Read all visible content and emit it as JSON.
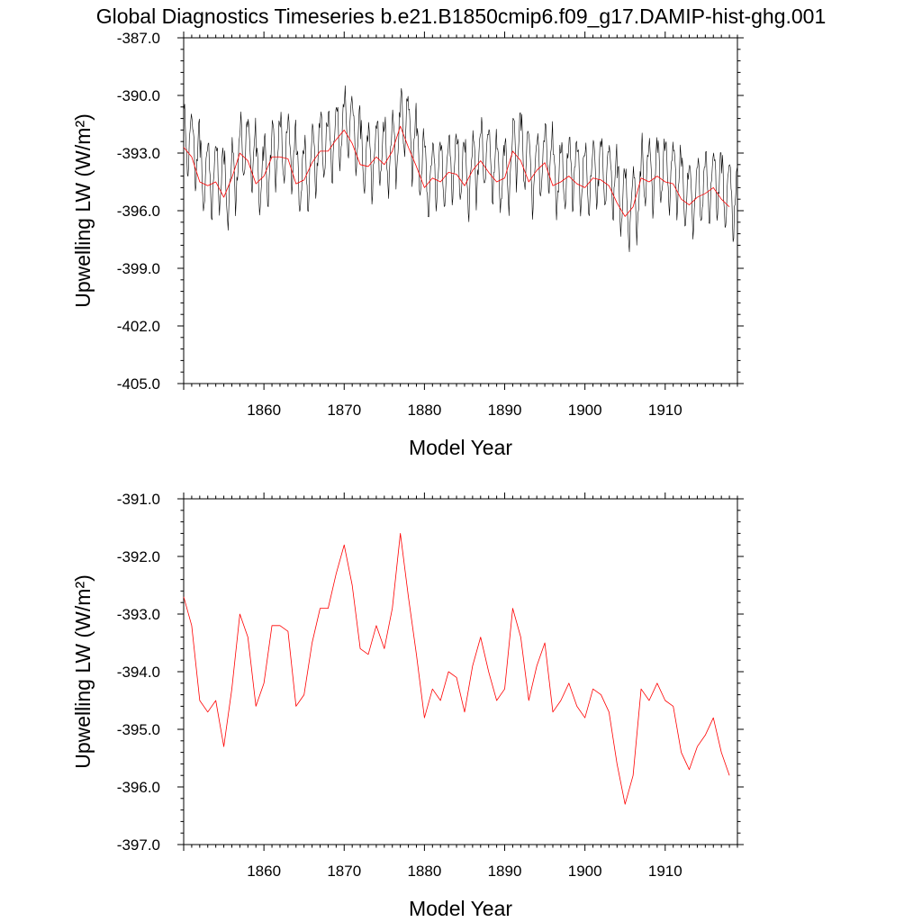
{
  "title": "Global Diagnostics Timeseries b.e21.B1850cmip6.f09_g17.DAMIP-hist-ghg.001",
  "colors": {
    "monthly": "#000000",
    "annual": "#ff0000",
    "axis": "#000000"
  },
  "chart_data": [
    {
      "type": "line",
      "ylabel": "Upwelling LW (W/m²)",
      "xlabel": "Model Year",
      "xlim": [
        1850,
        1919
      ],
      "ylim": [
        -405.0,
        -387.0
      ],
      "xticks": [
        "1860",
        "1870",
        "1880",
        "1890",
        "1900",
        "1910"
      ],
      "yticks": [
        "-387.0",
        "-390.0",
        "-393.0",
        "-396.0",
        "-399.0",
        "-402.0",
        "-405.0"
      ],
      "series": [
        {
          "style": "monthly",
          "color": "#000000",
          "x_start": 1850.0417,
          "x_step": 0.083333,
          "monthly_cycle": [
            1.75,
            1.9,
            1.3,
            0.3,
            -0.7,
            -1.6,
            -1.4,
            -0.5,
            0.1,
            0.9,
            1.5,
            1.7
          ],
          "annual_means": [
            -392.7,
            -393.2,
            -394.5,
            -394.7,
            -394.5,
            -395.3,
            -394.3,
            -393.0,
            -393.4,
            -394.6,
            -394.2,
            -393.2,
            -393.2,
            -393.3,
            -394.6,
            -394.4,
            -393.5,
            -392.9,
            -392.9,
            -392.3,
            -391.8,
            -392.5,
            -393.6,
            -393.7,
            -393.2,
            -393.6,
            -392.9,
            -391.6,
            -392.7,
            -393.7,
            -394.8,
            -394.3,
            -394.5,
            -394.0,
            -394.1,
            -394.7,
            -393.9,
            -393.4,
            -394.0,
            -394.5,
            -394.3,
            -392.9,
            -393.4,
            -394.5,
            -393.9,
            -393.5,
            -394.7,
            -394.5,
            -394.2,
            -394.6,
            -394.8,
            -394.3,
            -394.4,
            -394.7,
            -395.6,
            -396.3,
            -395.8,
            -394.3,
            -394.5,
            -394.2,
            -394.5,
            -394.6,
            -395.4,
            -395.7,
            -395.3,
            -395.1,
            -394.8,
            -395.4,
            -395.8
          ]
        },
        {
          "style": "annual",
          "color": "#ff0000",
          "x": [
            1850,
            1851,
            1852,
            1853,
            1854,
            1855,
            1856,
            1857,
            1858,
            1859,
            1860,
            1861,
            1862,
            1863,
            1864,
            1865,
            1866,
            1867,
            1868,
            1869,
            1870,
            1871,
            1872,
            1873,
            1874,
            1875,
            1876,
            1877,
            1878,
            1879,
            1880,
            1881,
            1882,
            1883,
            1884,
            1885,
            1886,
            1887,
            1888,
            1889,
            1890,
            1891,
            1892,
            1893,
            1894,
            1895,
            1896,
            1897,
            1898,
            1899,
            1900,
            1901,
            1902,
            1903,
            1904,
            1905,
            1906,
            1907,
            1908,
            1909,
            1910,
            1911,
            1912,
            1913,
            1914,
            1915,
            1916,
            1917,
            1918
          ],
          "values": [
            -392.7,
            -393.2,
            -394.5,
            -394.7,
            -394.5,
            -395.3,
            -394.3,
            -393.0,
            -393.4,
            -394.6,
            -394.2,
            -393.2,
            -393.2,
            -393.3,
            -394.6,
            -394.4,
            -393.5,
            -392.9,
            -392.9,
            -392.3,
            -391.8,
            -392.5,
            -393.6,
            -393.7,
            -393.2,
            -393.6,
            -392.9,
            -391.6,
            -392.7,
            -393.7,
            -394.8,
            -394.3,
            -394.5,
            -394.0,
            -394.1,
            -394.7,
            -393.9,
            -393.4,
            -394.0,
            -394.5,
            -394.3,
            -392.9,
            -393.4,
            -394.5,
            -393.9,
            -393.5,
            -394.7,
            -394.5,
            -394.2,
            -394.6,
            -394.8,
            -394.3,
            -394.4,
            -394.7,
            -395.6,
            -396.3,
            -395.8,
            -394.3,
            -394.5,
            -394.2,
            -394.5,
            -394.6,
            -395.4,
            -395.7,
            -395.3,
            -395.1,
            -394.8,
            -395.4,
            -395.8
          ]
        }
      ]
    },
    {
      "type": "line",
      "ylabel": "Upwelling LW (W/m²)",
      "xlabel": "Model Year",
      "xlim": [
        1850,
        1919
      ],
      "ylim": [
        -397.0,
        -391.0
      ],
      "xticks": [
        "1860",
        "1870",
        "1880",
        "1890",
        "1900",
        "1910"
      ],
      "yticks": [
        "-391.0",
        "-392.0",
        "-393.0",
        "-394.0",
        "-395.0",
        "-396.0",
        "-397.0"
      ],
      "series": [
        {
          "style": "annual",
          "color": "#ff0000",
          "x": [
            1850,
            1851,
            1852,
            1853,
            1854,
            1855,
            1856,
            1857,
            1858,
            1859,
            1860,
            1861,
            1862,
            1863,
            1864,
            1865,
            1866,
            1867,
            1868,
            1869,
            1870,
            1871,
            1872,
            1873,
            1874,
            1875,
            1876,
            1877,
            1878,
            1879,
            1880,
            1881,
            1882,
            1883,
            1884,
            1885,
            1886,
            1887,
            1888,
            1889,
            1890,
            1891,
            1892,
            1893,
            1894,
            1895,
            1896,
            1897,
            1898,
            1899,
            1900,
            1901,
            1902,
            1903,
            1904,
            1905,
            1906,
            1907,
            1908,
            1909,
            1910,
            1911,
            1912,
            1913,
            1914,
            1915,
            1916,
            1917,
            1918
          ],
          "values": [
            -392.7,
            -393.2,
            -394.5,
            -394.7,
            -394.5,
            -395.3,
            -394.3,
            -393.0,
            -393.4,
            -394.6,
            -394.2,
            -393.2,
            -393.2,
            -393.3,
            -394.6,
            -394.4,
            -393.5,
            -392.9,
            -392.9,
            -392.3,
            -391.8,
            -392.5,
            -393.6,
            -393.7,
            -393.2,
            -393.6,
            -392.9,
            -391.6,
            -392.7,
            -393.7,
            -394.8,
            -394.3,
            -394.5,
            -394.0,
            -394.1,
            -394.7,
            -393.9,
            -393.4,
            -394.0,
            -394.5,
            -394.3,
            -392.9,
            -393.4,
            -394.5,
            -393.9,
            -393.5,
            -394.7,
            -394.5,
            -394.2,
            -394.6,
            -394.8,
            -394.3,
            -394.4,
            -394.7,
            -395.6,
            -396.3,
            -395.8,
            -394.3,
            -394.5,
            -394.2,
            -394.5,
            -394.6,
            -395.4,
            -395.7,
            -395.3,
            -395.1,
            -394.8,
            -395.4,
            -395.8
          ]
        }
      ]
    }
  ]
}
